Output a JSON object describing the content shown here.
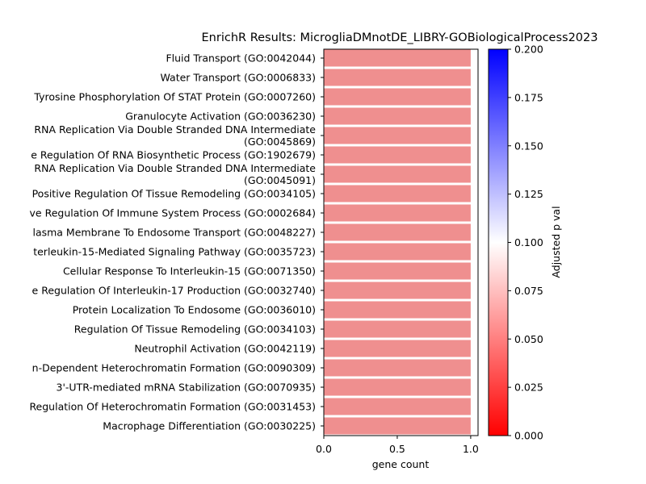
{
  "chart_data": {
    "type": "bar",
    "orientation": "horizontal",
    "title": "EnrichR Results: MicrogliaDMnotDE_LIBRY-GOBiologicalProcess2023",
    "xlabel": "gene count",
    "ylabel": "",
    "xlim": [
      0,
      1.05
    ],
    "x_ticks": [
      "0.0",
      "0.5",
      "1.0"
    ],
    "bar_color": "#ef8f8f",
    "categories": [
      "Fluid Transport (GO:0042044)",
      "Water Transport (GO:0006833)",
      "Tyrosine Phosphorylation Of STAT Protein (GO:0007260)",
      "Granulocyte Activation (GO:0036230)",
      "RNA Replication Via Double Stranded DNA Intermediate\n(GO:0045869)",
      "e Regulation Of RNA Biosynthetic Process (GO:1902679)",
      "RNA Replication Via Double Stranded DNA Intermediate\n(GO:0045091)",
      "Positive Regulation Of Tissue Remodeling (GO:0034105)",
      "ve Regulation Of Immune System Process (GO:0002684)",
      "lasma Membrane To Endosome Transport (GO:0048227)",
      "terleukin-15-Mediated Signaling Pathway (GO:0035723)",
      "Cellular Response To Interleukin-15 (GO:0071350)",
      "e Regulation Of Interleukin-17 Production (GO:0032740)",
      "Protein Localization To Endosome (GO:0036010)",
      "Regulation Of Tissue Remodeling (GO:0034103)",
      "Neutrophil Activation (GO:0042119)",
      "n-Dependent Heterochromatin Formation (GO:0090309)",
      "3'-UTR-mediated mRNA Stabilization (GO:0070935)",
      "Regulation Of Heterochromatin Formation (GO:0031453)",
      "Macrophage Differentiation (GO:0030225)"
    ],
    "values": [
      1,
      1,
      1,
      1,
      1,
      1,
      1,
      1,
      1,
      1,
      1,
      1,
      1,
      1,
      1,
      1,
      1,
      1,
      1,
      1
    ],
    "colorbar": {
      "label": "Adjusted p val",
      "range": [
        0.0,
        0.2
      ],
      "ticks": [
        "0.000",
        "0.025",
        "0.050",
        "0.075",
        "0.100",
        "0.125",
        "0.150",
        "0.175",
        "0.200"
      ],
      "colors": [
        "#ff0000",
        "#ffffff",
        "#0000ff"
      ]
    }
  }
}
